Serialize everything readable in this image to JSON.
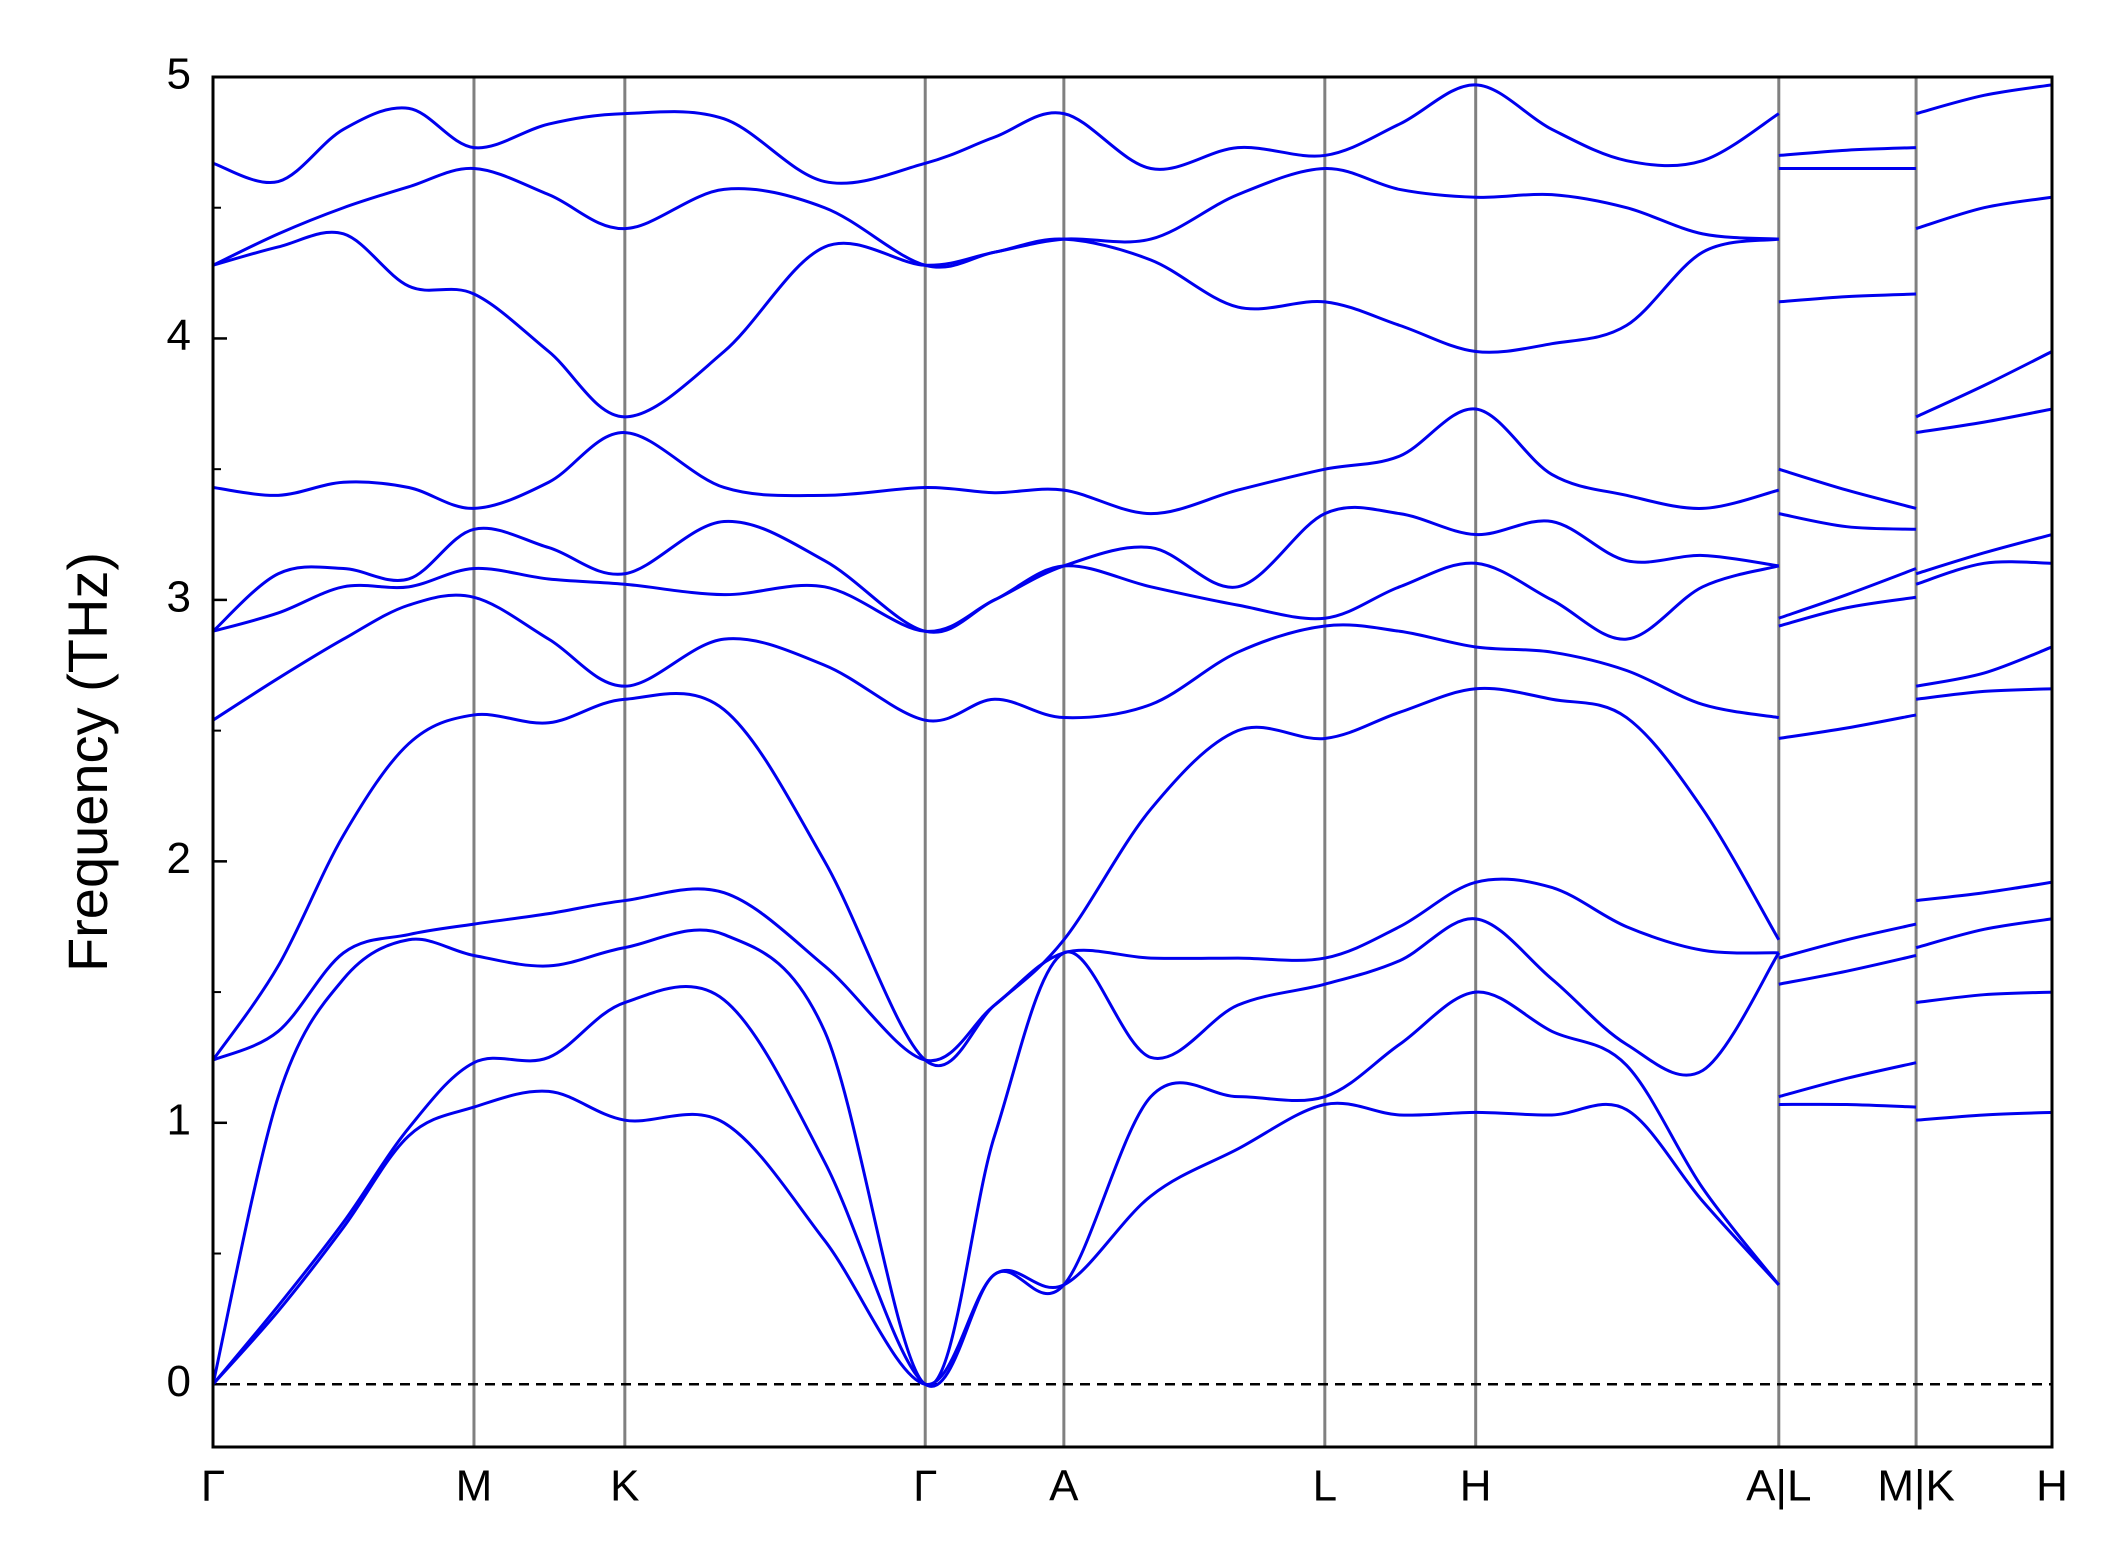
{
  "chart_data": {
    "type": "line",
    "ylabel": "Frequency (THz)",
    "xlim": [
      0,
      1353
    ],
    "xticks": [
      {
        "value": 0,
        "label": "Γ"
      },
      {
        "value": 192,
        "label": "M"
      },
      {
        "value": 303,
        "label": "K"
      },
      {
        "value": 524,
        "label": "Γ"
      },
      {
        "value": 626,
        "label": "A"
      },
      {
        "value": 818,
        "label": "L"
      },
      {
        "value": 929,
        "label": "H"
      },
      {
        "value": 1152,
        "label": "A|L"
      },
      {
        "value": 1253,
        "label": "M|K"
      },
      {
        "value": 1353,
        "label": "H"
      }
    ],
    "ylim": [
      -0.24,
      5
    ],
    "yticks": [
      0,
      1,
      2,
      3,
      4,
      5
    ],
    "yticks_minor": [
      0.5,
      1.5,
      2.5,
      3.5,
      4.5
    ],
    "x": [
      0,
      48,
      96,
      144,
      192,
      247,
      303,
      376,
      450,
      524,
      575,
      626,
      690,
      754,
      818,
      873,
      929,
      985,
      1040,
      1096,
      1152,
      1152,
      1152,
      1202,
      1253,
      1253,
      1253,
      1303,
      1353
    ],
    "series": [
      {
        "color": "#0000ee",
        "values": [
          0,
          0.28,
          0.6,
          0.95,
          1.06,
          1.12,
          1.01,
          1.0,
          0.55,
          0,
          0.42,
          0.38,
          0.72,
          0.9,
          1.07,
          1.03,
          1.04,
          1.03,
          1.05,
          0.7,
          0.38,
          null,
          1.07,
          1.07,
          1.06,
          null,
          1.01,
          1.03,
          1.04
        ]
      },
      {
        "color": "#0000ee",
        "values": [
          0,
          0.3,
          0.62,
          0.98,
          1.23,
          1.25,
          1.46,
          1.47,
          0.85,
          0,
          0.42,
          0.38,
          1.1,
          1.1,
          1.1,
          1.3,
          1.5,
          1.35,
          1.22,
          0.75,
          0.38,
          null,
          1.1,
          1.17,
          1.23,
          null,
          1.46,
          1.49,
          1.5
        ]
      },
      {
        "color": "#0000ee",
        "values": [
          0,
          1.1,
          1.55,
          1.7,
          1.64,
          1.6,
          1.67,
          1.72,
          1.35,
          0,
          0.95,
          1.65,
          1.25,
          1.45,
          1.53,
          1.62,
          1.78,
          1.55,
          1.3,
          1.2,
          1.65,
          null,
          1.53,
          1.58,
          1.64,
          null,
          1.67,
          1.74,
          1.78
        ]
      },
      {
        "color": "#0000ee",
        "values": [
          1.24,
          1.35,
          1.65,
          1.72,
          1.76,
          1.8,
          1.85,
          1.88,
          1.6,
          1.24,
          1.45,
          1.65,
          1.63,
          1.63,
          1.63,
          1.75,
          1.92,
          1.9,
          1.75,
          1.66,
          1.65,
          null,
          1.63,
          1.7,
          1.76,
          null,
          1.85,
          1.88,
          1.92
        ]
      },
      {
        "color": "#0000ee",
        "values": [
          1.24,
          1.6,
          2.1,
          2.45,
          2.56,
          2.53,
          2.62,
          2.58,
          2.0,
          1.24,
          1.45,
          1.7,
          2.2,
          2.5,
          2.47,
          2.57,
          2.66,
          2.62,
          2.55,
          2.2,
          1.7,
          null,
          2.47,
          2.51,
          2.56,
          null,
          2.62,
          2.65,
          2.66
        ]
      },
      {
        "color": "#0000ee",
        "values": [
          2.54,
          2.7,
          2.85,
          2.98,
          3.01,
          2.85,
          2.67,
          2.85,
          2.75,
          2.54,
          2.62,
          2.55,
          2.6,
          2.8,
          2.9,
          2.88,
          2.82,
          2.8,
          2.73,
          2.6,
          2.55,
          null,
          2.9,
          2.97,
          3.01,
          null,
          2.67,
          2.72,
          2.82
        ]
      },
      {
        "color": "#0000ee",
        "values": [
          2.88,
          2.95,
          3.05,
          3.05,
          3.12,
          3.08,
          3.06,
          3.02,
          3.05,
          2.88,
          3.0,
          3.13,
          3.05,
          2.98,
          2.93,
          3.05,
          3.14,
          3.0,
          2.85,
          3.05,
          3.13,
          null,
          2.93,
          3.02,
          3.12,
          null,
          3.06,
          3.14,
          3.14
        ]
      },
      {
        "color": "#0000ee",
        "values": [
          2.88,
          3.1,
          3.12,
          3.08,
          3.27,
          3.2,
          3.1,
          3.3,
          3.15,
          2.88,
          3.0,
          3.13,
          3.2,
          3.05,
          3.33,
          3.33,
          3.25,
          3.3,
          3.15,
          3.17,
          3.13,
          null,
          3.33,
          3.28,
          3.27,
          null,
          3.1,
          3.18,
          3.25
        ]
      },
      {
        "color": "#0000ee",
        "values": [
          3.43,
          3.4,
          3.45,
          3.43,
          3.35,
          3.45,
          3.64,
          3.43,
          3.4,
          3.43,
          3.41,
          3.42,
          3.33,
          3.42,
          3.5,
          3.55,
          3.73,
          3.48,
          3.4,
          3.35,
          3.42,
          null,
          3.5,
          3.42,
          3.35,
          null,
          3.64,
          3.68,
          3.73
        ]
      },
      {
        "color": "#0000ee",
        "values": [
          4.28,
          4.35,
          4.4,
          4.2,
          4.17,
          3.95,
          3.7,
          3.95,
          4.35,
          4.28,
          4.33,
          4.38,
          4.3,
          4.12,
          4.14,
          4.05,
          3.95,
          3.98,
          4.05,
          4.33,
          4.38,
          null,
          4.14,
          4.16,
          4.17,
          null,
          3.7,
          3.82,
          3.95
        ]
      },
      {
        "color": "#0000ee",
        "values": [
          4.28,
          4.4,
          4.5,
          4.58,
          4.65,
          4.55,
          4.42,
          4.57,
          4.5,
          4.28,
          4.33,
          4.38,
          4.38,
          4.55,
          4.65,
          4.57,
          4.54,
          4.55,
          4.5,
          4.4,
          4.38,
          null,
          4.65,
          4.65,
          4.65,
          null,
          4.42,
          4.5,
          4.54
        ]
      },
      {
        "color": "#0000ee",
        "values": [
          4.67,
          4.6,
          4.8,
          4.88,
          4.73,
          4.82,
          4.86,
          4.84,
          4.6,
          4.67,
          4.77,
          4.86,
          4.65,
          4.73,
          4.7,
          4.82,
          4.97,
          4.8,
          4.68,
          4.68,
          4.86,
          null,
          4.7,
          4.72,
          4.73,
          null,
          4.86,
          4.93,
          4.97
        ]
      }
    ]
  }
}
